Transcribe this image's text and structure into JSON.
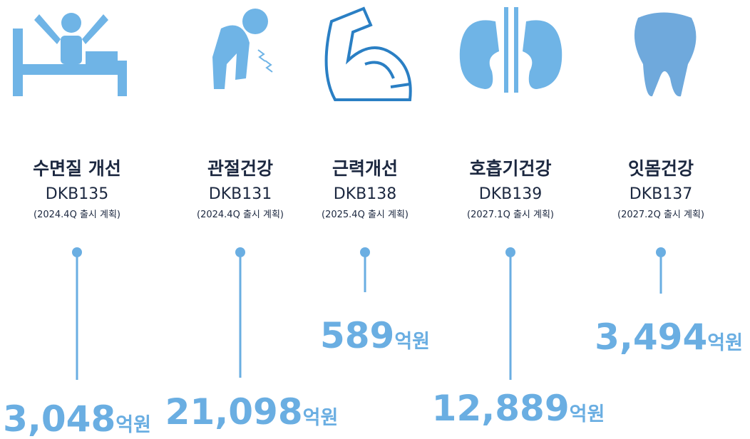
{
  "items": [
    {
      "name": "수면질 개선",
      "code": "DKB135",
      "plan": "(2024.4Q 출시 계획)",
      "amount": "3,048",
      "unit": "억원"
    },
    {
      "name": "관절건강",
      "code": "DKB131",
      "plan": "(2024.4Q 출시 계획)",
      "amount": "21,098",
      "unit": "억원"
    },
    {
      "name": "근력개선",
      "code": "DKB138",
      "plan": "(2025.4Q 출시 계획)",
      "amount": "589",
      "unit": "억원"
    },
    {
      "name": "호흡기건강",
      "code": "DKB139",
      "plan": "(2027.1Q 출시 계획)",
      "amount": "12,889",
      "unit": "억원"
    },
    {
      "name": "잇몸건강",
      "code": "DKB137",
      "plan": "(2027.2Q 출시 계획)",
      "amount": "3,494",
      "unit": "억원"
    }
  ]
}
